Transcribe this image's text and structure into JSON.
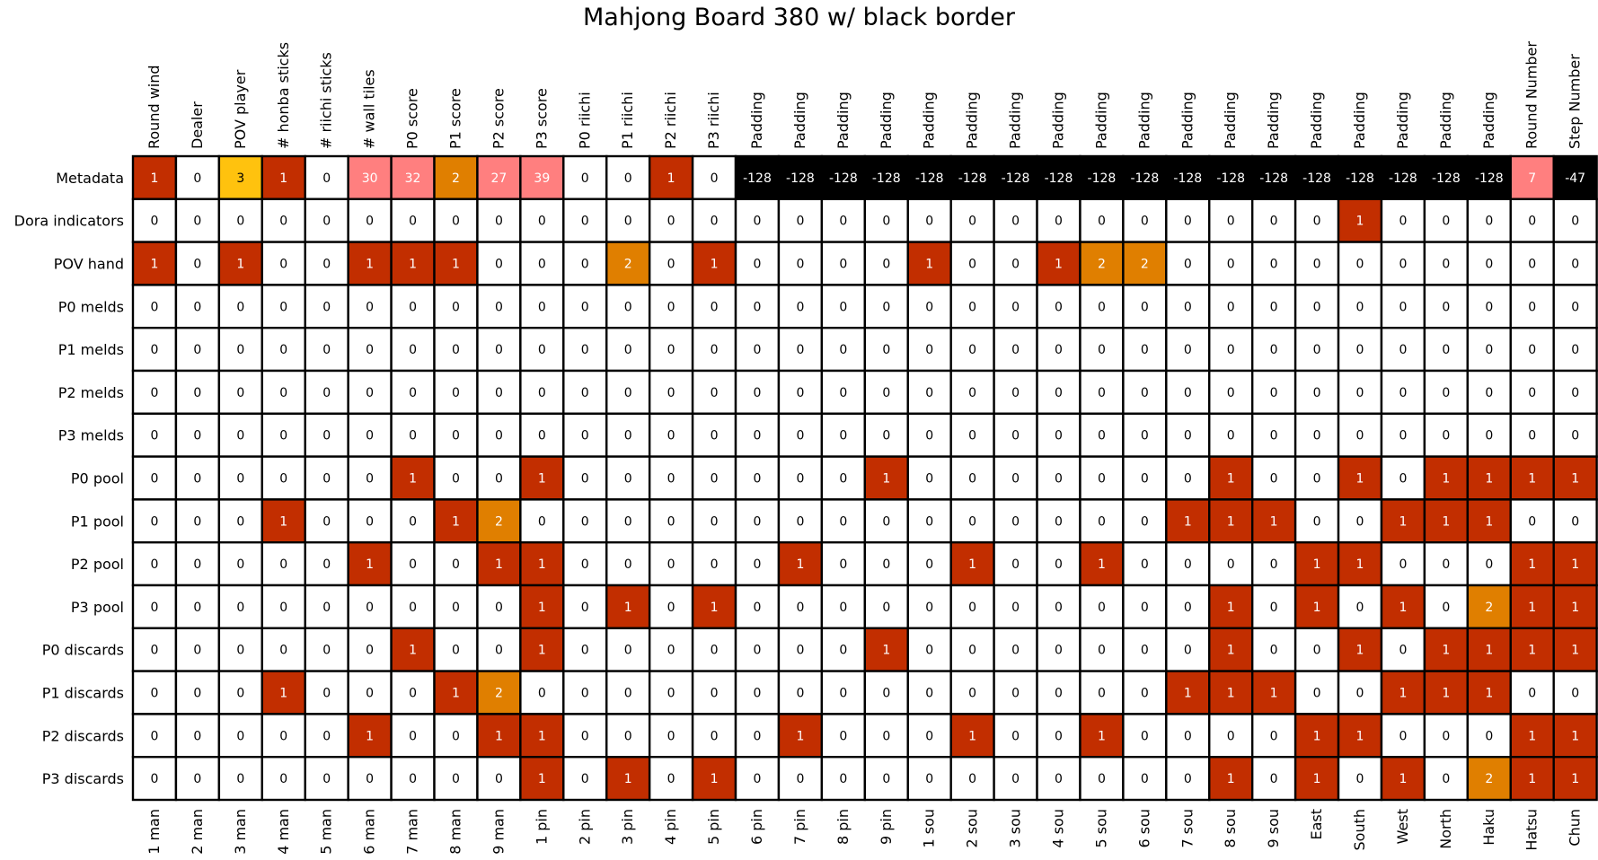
{
  "chart_data": {
    "type": "heatmap",
    "title": "Mahjong Board 380 w/ black border",
    "top_labels": [
      "Round wind",
      "Dealer",
      "POV player",
      "# honba sticks",
      "# riichi sticks",
      "# wall tiles",
      "P0 score",
      "P1 score",
      "P2 score",
      "P3 score",
      "P0 riichi",
      "P1 riichi",
      "P2 riichi",
      "P3 riichi",
      "Padding",
      "Padding",
      "Padding",
      "Padding",
      "Padding",
      "Padding",
      "Padding",
      "Padding",
      "Padding",
      "Padding",
      "Padding",
      "Padding",
      "Padding",
      "Padding",
      "Padding",
      "Padding",
      "Padding",
      "Padding",
      "Round Number",
      "Step Number"
    ],
    "bottom_labels": [
      "1 man",
      "2 man",
      "3 man",
      "4 man",
      "5 man",
      "6 man",
      "7 man",
      "8 man",
      "9 man",
      "1 pin",
      "2 pin",
      "3 pin",
      "4 pin",
      "5 pin",
      "6 pin",
      "7 pin",
      "8 pin",
      "9 pin",
      "1 sou",
      "2 sou",
      "3 sou",
      "4 sou",
      "5 sou",
      "6 sou",
      "7 sou",
      "8 sou",
      "9 sou",
      "East",
      "South",
      "West",
      "North",
      "Haku",
      "Hatsu",
      "Chun"
    ],
    "row_labels": [
      "Metadata",
      "Dora indicators",
      "POV hand",
      "P0 melds",
      "P1 melds",
      "P2 melds",
      "P3 melds",
      "P0 pool",
      "P1 pool",
      "P2 pool",
      "P3 pool",
      "P0 discards",
      "P1 discards",
      "P2 discards",
      "P3 discards"
    ],
    "values": [
      [
        1,
        0,
        3,
        1,
        0,
        30,
        32,
        2,
        27,
        39,
        0,
        0,
        1,
        0,
        -128,
        -128,
        -128,
        -128,
        -128,
        -128,
        -128,
        -128,
        -128,
        -128,
        -128,
        -128,
        -128,
        -128,
        -128,
        -128,
        -128,
        -128,
        7,
        -47
      ],
      [
        0,
        0,
        0,
        0,
        0,
        0,
        0,
        0,
        0,
        0,
        0,
        0,
        0,
        0,
        0,
        0,
        0,
        0,
        0,
        0,
        0,
        0,
        0,
        0,
        0,
        0,
        0,
        0,
        1,
        0,
        0,
        0,
        0,
        0
      ],
      [
        1,
        0,
        1,
        0,
        0,
        1,
        1,
        1,
        0,
        0,
        0,
        2,
        0,
        1,
        0,
        0,
        0,
        0,
        1,
        0,
        0,
        1,
        2,
        2,
        0,
        0,
        0,
        0,
        0,
        0,
        0,
        0,
        0,
        0
      ],
      [
        0,
        0,
        0,
        0,
        0,
        0,
        0,
        0,
        0,
        0,
        0,
        0,
        0,
        0,
        0,
        0,
        0,
        0,
        0,
        0,
        0,
        0,
        0,
        0,
        0,
        0,
        0,
        0,
        0,
        0,
        0,
        0,
        0,
        0
      ],
      [
        0,
        0,
        0,
        0,
        0,
        0,
        0,
        0,
        0,
        0,
        0,
        0,
        0,
        0,
        0,
        0,
        0,
        0,
        0,
        0,
        0,
        0,
        0,
        0,
        0,
        0,
        0,
        0,
        0,
        0,
        0,
        0,
        0,
        0
      ],
      [
        0,
        0,
        0,
        0,
        0,
        0,
        0,
        0,
        0,
        0,
        0,
        0,
        0,
        0,
        0,
        0,
        0,
        0,
        0,
        0,
        0,
        0,
        0,
        0,
        0,
        0,
        0,
        0,
        0,
        0,
        0,
        0,
        0,
        0
      ],
      [
        0,
        0,
        0,
        0,
        0,
        0,
        0,
        0,
        0,
        0,
        0,
        0,
        0,
        0,
        0,
        0,
        0,
        0,
        0,
        0,
        0,
        0,
        0,
        0,
        0,
        0,
        0,
        0,
        0,
        0,
        0,
        0,
        0,
        0
      ],
      [
        0,
        0,
        0,
        0,
        0,
        0,
        1,
        0,
        0,
        1,
        0,
        0,
        0,
        0,
        0,
        0,
        0,
        1,
        0,
        0,
        0,
        0,
        0,
        0,
        0,
        1,
        0,
        0,
        1,
        0,
        1,
        1,
        1,
        1
      ],
      [
        0,
        0,
        0,
        1,
        0,
        0,
        0,
        1,
        2,
        0,
        0,
        0,
        0,
        0,
        0,
        0,
        0,
        0,
        0,
        0,
        0,
        0,
        0,
        0,
        1,
        1,
        1,
        0,
        0,
        1,
        1,
        1,
        0,
        0
      ],
      [
        0,
        0,
        0,
        0,
        0,
        1,
        0,
        0,
        1,
        1,
        0,
        0,
        0,
        0,
        0,
        1,
        0,
        0,
        0,
        1,
        0,
        0,
        1,
        0,
        0,
        0,
        0,
        1,
        1,
        0,
        0,
        0,
        1,
        1
      ],
      [
        0,
        0,
        0,
        0,
        0,
        0,
        0,
        0,
        0,
        1,
        0,
        1,
        0,
        1,
        0,
        0,
        0,
        0,
        0,
        0,
        0,
        0,
        0,
        0,
        0,
        1,
        0,
        1,
        0,
        1,
        0,
        2,
        1,
        1
      ],
      [
        0,
        0,
        0,
        0,
        0,
        0,
        1,
        0,
        0,
        1,
        0,
        0,
        0,
        0,
        0,
        0,
        0,
        1,
        0,
        0,
        0,
        0,
        0,
        0,
        0,
        1,
        0,
        0,
        1,
        0,
        1,
        1,
        1,
        1
      ],
      [
        0,
        0,
        0,
        1,
        0,
        0,
        0,
        1,
        2,
        0,
        0,
        0,
        0,
        0,
        0,
        0,
        0,
        0,
        0,
        0,
        0,
        0,
        0,
        0,
        1,
        1,
        1,
        0,
        0,
        1,
        1,
        1,
        0,
        0
      ],
      [
        0,
        0,
        0,
        0,
        0,
        1,
        0,
        0,
        1,
        1,
        0,
        0,
        0,
        0,
        0,
        1,
        0,
        0,
        0,
        1,
        0,
        0,
        1,
        0,
        0,
        0,
        0,
        1,
        1,
        0,
        0,
        0,
        1,
        1
      ],
      [
        0,
        0,
        0,
        0,
        0,
        0,
        0,
        0,
        0,
        1,
        0,
        1,
        0,
        1,
        0,
        0,
        0,
        0,
        0,
        0,
        0,
        0,
        0,
        0,
        0,
        1,
        0,
        1,
        0,
        1,
        0,
        2,
        1,
        1
      ]
    ],
    "metadata_colors": [
      "#c22e00",
      "#ffffff",
      "#ffc20e",
      "#c22e00",
      "#ffffff",
      "#ff7f7f",
      "#ff7f7f",
      "#e07f00",
      "#ff7f7f",
      "#ff7f7f",
      "#ffffff",
      "#ffffff",
      "#c22e00",
      "#ffffff",
      "#000000",
      "#000000",
      "#000000",
      "#000000",
      "#000000",
      "#000000",
      "#000000",
      "#000000",
      "#000000",
      "#000000",
      "#000000",
      "#000000",
      "#000000",
      "#000000",
      "#000000",
      "#000000",
      "#000000",
      "#000000",
      "#ff7f7f",
      "#000000"
    ],
    "value_colors": {
      "0": "#ffffff",
      "1": "#c22e00",
      "2": "#e07f00"
    },
    "grid": true
  }
}
